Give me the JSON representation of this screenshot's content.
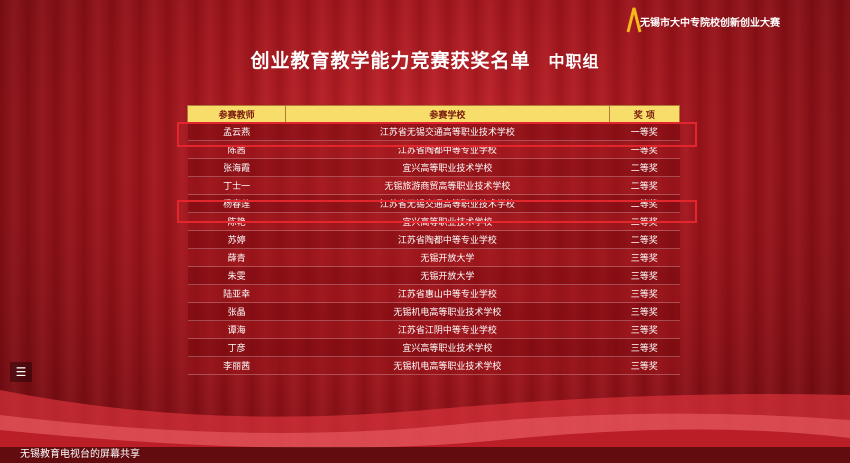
{
  "logo": "无锡市大中专院校创新创业大赛",
  "title": "创业教育教学能力竞赛获奖名单",
  "subtitle": "中职组",
  "table": {
    "headers": [
      "参赛教师",
      "参赛学校",
      "奖 项"
    ],
    "rows": [
      [
        "孟云燕",
        "江苏省无锡交通高等职业技术学校",
        "一等奖"
      ],
      [
        "陈茜",
        "江苏省陶都中等专业学校",
        "一等奖"
      ],
      [
        "张海霞",
        "宜兴高等职业技术学校",
        "二等奖"
      ],
      [
        "丁士一",
        "无锡旅游商贸高等职业技术学校",
        "二等奖"
      ],
      [
        "杨春莲",
        "江苏省无锡交通高等职业技术学校",
        "二等奖"
      ],
      [
        "陈艳",
        "宜兴高等职业技术学校",
        "二等奖"
      ],
      [
        "苏婷",
        "江苏省陶都中等专业学校",
        "二等奖"
      ],
      [
        "薛青",
        "无锡开放大学",
        "三等奖"
      ],
      [
        "朱雯",
        "无锡开放大学",
        "三等奖"
      ],
      [
        "陆亚幸",
        "江苏省惠山中等专业学校",
        "三等奖"
      ],
      [
        "张晶",
        "无锡机电高等职业技术学校",
        "三等奖"
      ],
      [
        "谭海",
        "江苏省江阴中等专业学校",
        "三等奖"
      ],
      [
        "丁彦",
        "宜兴高等职业技术学校",
        "三等奖"
      ],
      [
        "李丽茜",
        "无锡机电高等职业技术学校",
        "三等奖"
      ]
    ]
  },
  "footer": "无锡教育电视台的屏幕共享"
}
